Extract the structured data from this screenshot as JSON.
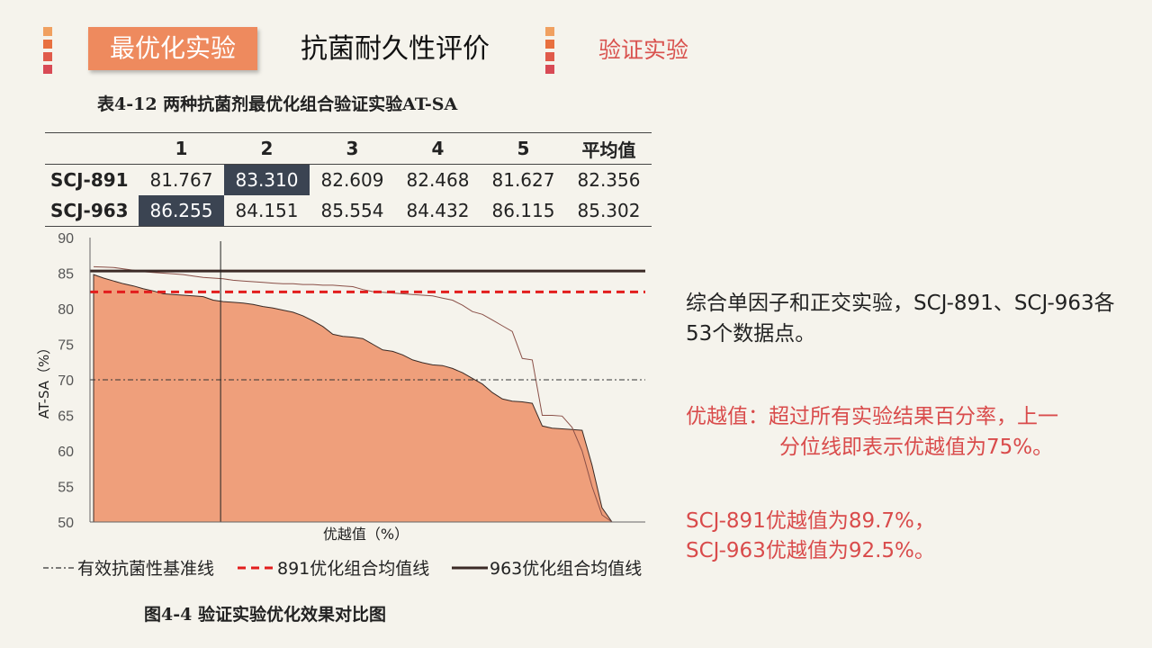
{
  "colors": {
    "accent": "#ee8a5e",
    "red": "#d94b4b",
    "dark": "#3b2a26",
    "fill": "#ef9f7b"
  },
  "header": {
    "tab_active": "最优化实验",
    "tab_mid": "抗菌耐久性评价",
    "tab_right": "验证实验"
  },
  "table": {
    "caption": "表4-12 两种抗菌剂最优化组合验证实验AT-SA",
    "columns": [
      "",
      "1",
      "2",
      "3",
      "4",
      "5",
      "平均值"
    ],
    "rows": [
      {
        "label": "SCJ-891",
        "values": [
          "81.767",
          "83.310",
          "82.609",
          "82.468",
          "81.627",
          "82.356"
        ],
        "highlight": 1
      },
      {
        "label": "SCJ-963",
        "values": [
          "86.255",
          "84.151",
          "85.554",
          "84.432",
          "86.115",
          "85.302"
        ],
        "highlight": 0
      }
    ]
  },
  "chart_data": {
    "type": "area",
    "ylabel": "AT-SA（%）",
    "xlabel": "优越值（%）",
    "ylim": [
      50,
      90
    ],
    "yticks": [
      50,
      55,
      60,
      65,
      70,
      75,
      80,
      85,
      90
    ],
    "baseline": 70,
    "avg_891": 82.356,
    "avg_963": 85.302,
    "vertical_marker_percent": 24.5,
    "series": [
      {
        "name": "SCJ-891",
        "type": "area",
        "values": [
          84.8,
          84.3,
          83.9,
          83.5,
          83.2,
          82.8,
          82.5,
          82.1,
          82.0,
          81.9,
          81.8,
          81.7,
          81.2,
          81.0,
          80.9,
          80.8,
          80.6,
          80.3,
          80.1,
          79.8,
          79.5,
          79.0,
          78.3,
          77.5,
          76.4,
          76.1,
          76.0,
          75.8,
          75.0,
          74.2,
          74.0,
          73.5,
          72.8,
          72.4,
          72.1,
          72.0,
          71.6,
          71.0,
          70.2,
          69.4,
          68.2,
          67.3,
          67.0,
          66.9,
          66.7,
          63.5,
          63.2,
          63.1,
          63.0,
          62.9,
          58.0,
          52.0,
          50.0
        ]
      },
      {
        "name": "SCJ-963",
        "type": "line",
        "values": [
          85.9,
          85.85,
          85.8,
          85.6,
          85.4,
          85.2,
          85.1,
          85.0,
          84.9,
          84.8,
          84.6,
          84.4,
          84.3,
          84.2,
          84.0,
          83.9,
          83.8,
          83.7,
          83.6,
          83.5,
          83.5,
          83.4,
          83.4,
          83.3,
          83.3,
          83.2,
          83.1,
          82.7,
          82.4,
          82.3,
          82.2,
          82.1,
          82.0,
          81.9,
          81.8,
          81.5,
          81.2,
          80.5,
          79.6,
          79.2,
          78.4,
          77.6,
          76.8,
          73.0,
          72.8,
          65.0,
          65.0,
          64.9,
          63.3,
          60.0,
          55.0,
          51.0,
          50.0
        ]
      }
    ]
  },
  "legend": {
    "baseline": "有效抗菌性基准线",
    "avg891": "891优化组合均值线",
    "avg963": "963优化组合均值线"
  },
  "figure_caption": "图4-4 验证实验优化效果对比图",
  "side": {
    "summary": "综合单因子和正交实验，SCJ-891、SCJ-963各53个数据点。",
    "superiority_line1": "优越值：超过所有实验结果百分率，上一",
    "superiority_line2": "分位线即表示优越值为75%。",
    "result_line1": "SCJ-891优越值为89.7%，",
    "result_line2": "SCJ-963优越值为92.5%。"
  }
}
